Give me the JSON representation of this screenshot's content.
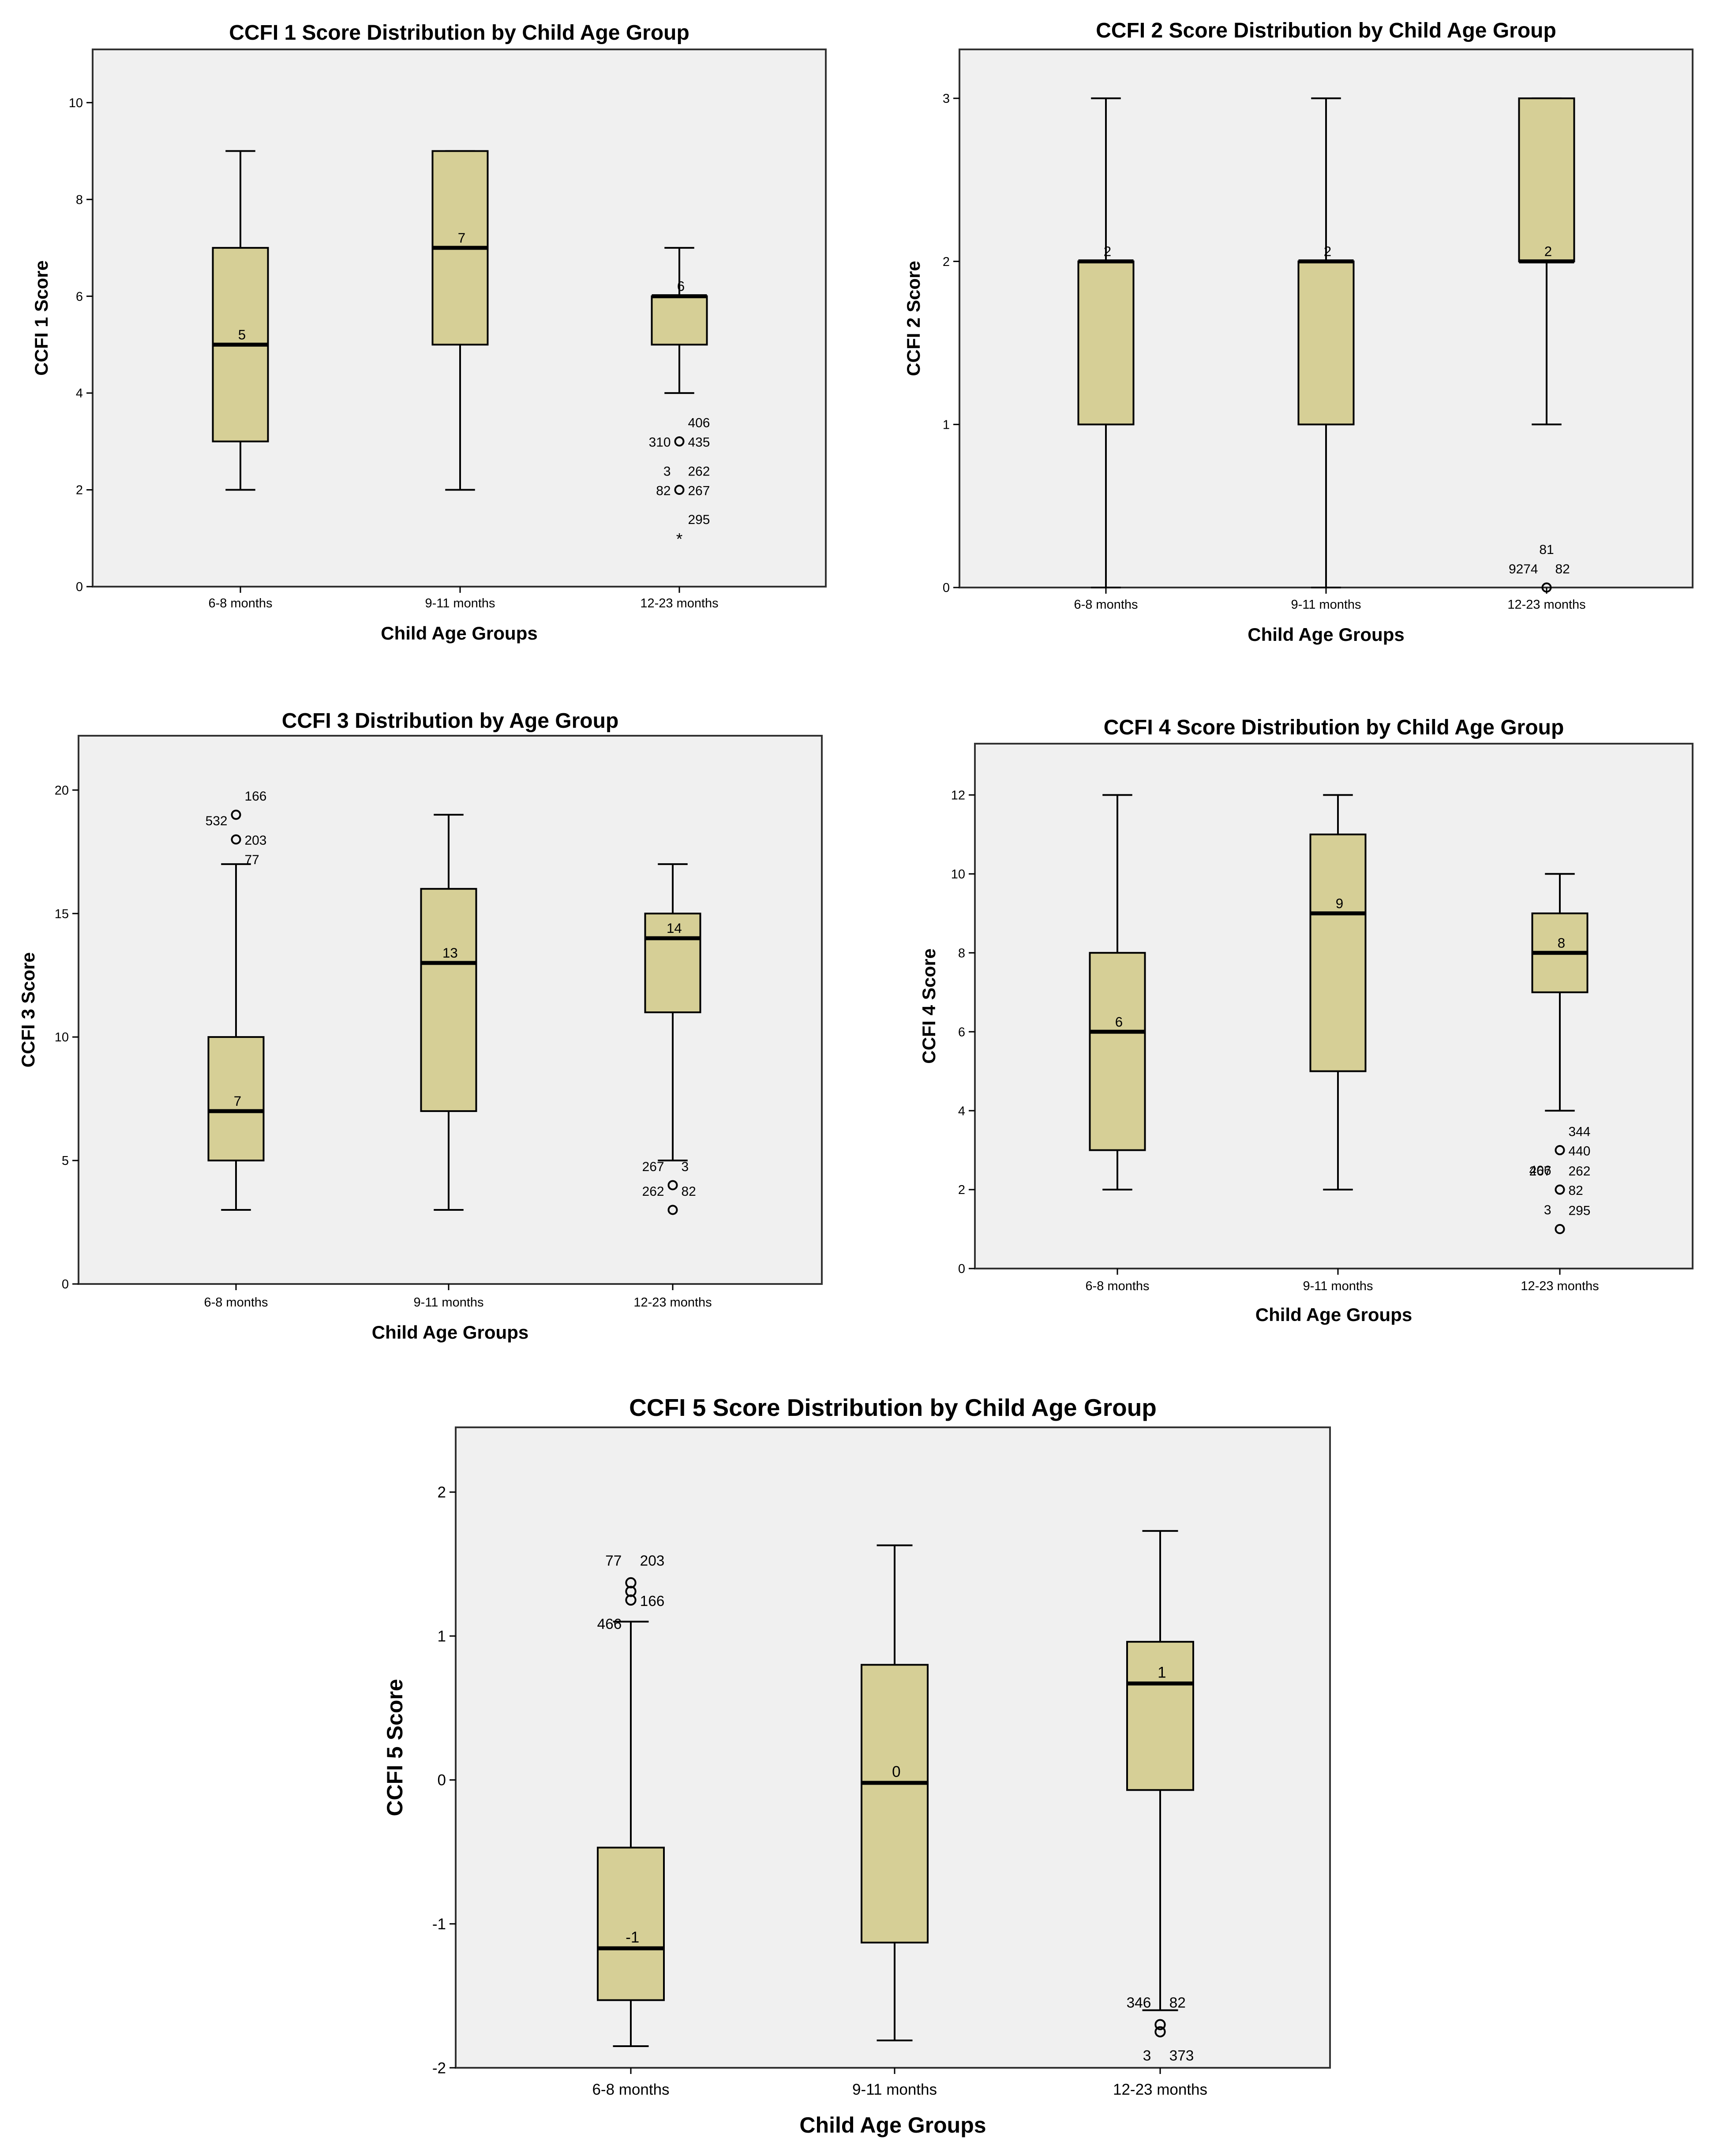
{
  "colors": {
    "box_fill": "#d6cf96",
    "plot_bg": "#f0f0f0",
    "frame": "#333333",
    "ink": "#000000"
  },
  "chart_data": [
    {
      "type": "boxplot",
      "title": "CCFI 1 Score Distribution by Child Age Group",
      "xlabel": "Child Age Groups",
      "ylabel": "CCFI 1 Score",
      "ylim": [
        0,
        11.1
      ],
      "yticks": [
        0,
        2,
        4,
        6,
        8,
        10
      ],
      "categories": [
        "6-8 months",
        "9-11 months",
        "12-23 months"
      ],
      "boxes": [
        {
          "category": "6-8 months",
          "whisker_low": 2,
          "q1": 3,
          "median": 5,
          "q3": 7,
          "whisker_high": 9,
          "median_label": "5",
          "outliers": []
        },
        {
          "category": "9-11 months",
          "whisker_low": 2,
          "q1": 5,
          "median": 7,
          "q3": 9,
          "whisker_high": 9,
          "median_label": "7",
          "outliers": []
        },
        {
          "category": "12-23 months",
          "whisker_low": 4,
          "q1": 5,
          "median": 6,
          "q3": 6,
          "whisker_high": 7,
          "median_label": "6",
          "outliers": [
            {
              "value": 3,
              "symbol": "circle",
              "labels": [
                {
                  "text": "406",
                  "side": "right",
                  "row": -1
                },
                {
                  "text": "310",
                  "side": "left",
                  "row": 0
                },
                {
                  "text": "435",
                  "side": "right",
                  "row": 0
                }
              ]
            },
            {
              "value": 2,
              "symbol": "circle",
              "labels": [
                {
                  "text": "3",
                  "side": "left",
                  "row": -1
                },
                {
                  "text": "262",
                  "side": "right",
                  "row": -1
                },
                {
                  "text": "82",
                  "side": "left",
                  "row": 0
                },
                {
                  "text": "267",
                  "side": "right",
                  "row": 0
                }
              ]
            },
            {
              "value": 1,
              "symbol": "star",
              "labels": [
                {
                  "text": "295",
                  "side": "right",
                  "row": -1
                }
              ]
            }
          ]
        }
      ]
    },
    {
      "type": "boxplot",
      "title": "CCFI 2 Score Distribution by Child Age Group",
      "xlabel": "Child Age Groups",
      "ylabel": "CCFI 2 Score",
      "ylim": [
        0,
        3.3
      ],
      "yticks": [
        0,
        1,
        2,
        3
      ],
      "categories": [
        "6-8 months",
        "9-11 months",
        "12-23 months"
      ],
      "boxes": [
        {
          "category": "6-8 months",
          "whisker_low": 0,
          "q1": 1,
          "median": 2,
          "q3": 2,
          "whisker_high": 3,
          "median_label": "2",
          "outliers": []
        },
        {
          "category": "9-11 months",
          "whisker_low": 0,
          "q1": 1,
          "median": 2,
          "q3": 2,
          "whisker_high": 3,
          "median_label": "2",
          "outliers": []
        },
        {
          "category": "12-23 months",
          "whisker_low": 1,
          "q1": 2,
          "median": 2,
          "q3": 3,
          "whisker_high": 3,
          "median_label": "2",
          "outliers": [
            {
              "value": 0,
              "symbol": "circle",
              "labels": [
                {
                  "text": "81",
                  "side": "center",
                  "row": -2
                },
                {
                  "text": "9274",
                  "side": "left",
                  "row": -1
                },
                {
                  "text": "82",
                  "side": "right",
                  "row": -1
                }
              ]
            }
          ]
        }
      ]
    },
    {
      "type": "boxplot",
      "title": "CCFI 3 Distribution by Age Group",
      "xlabel": "Child Age Groups",
      "ylabel": "CCFI 3 Score",
      "ylim": [
        0,
        22.2
      ],
      "yticks": [
        0,
        5,
        10,
        15,
        20
      ],
      "categories": [
        "6-8 months",
        "9-11 months",
        "12-23 months"
      ],
      "boxes": [
        {
          "category": "6-8 months",
          "whisker_low": 3,
          "q1": 5,
          "median": 7,
          "q3": 10,
          "whisker_high": 17,
          "median_label": "7",
          "outliers": [
            {
              "value": 19,
              "symbol": "circle",
              "labels": [
                {
                  "text": "166",
                  "side": "right",
                  "row": -1
                }
              ]
            },
            {
              "value": 18,
              "symbol": "circle",
              "labels": [
                {
                  "text": "532",
                  "side": "left",
                  "row": -1
                },
                {
                  "text": "203",
                  "side": "right",
                  "row": 0
                },
                {
                  "text": "77",
                  "side": "right",
                  "row": 1
                }
              ]
            }
          ]
        },
        {
          "category": "9-11 months",
          "whisker_low": 3,
          "q1": 7,
          "median": 13,
          "q3": 16,
          "whisker_high": 19,
          "median_label": "13",
          "outliers": []
        },
        {
          "category": "12-23 months",
          "whisker_low": 5,
          "q1": 11,
          "median": 14,
          "q3": 15,
          "whisker_high": 17,
          "median_label": "14",
          "outliers": [
            {
              "value": 4,
              "symbol": "circle",
              "labels": [
                {
                  "text": "267",
                  "side": "left",
                  "row": -1
                },
                {
                  "text": "3",
                  "side": "right",
                  "row": -1
                }
              ]
            },
            {
              "value": 3,
              "symbol": "circle",
              "labels": [
                {
                  "text": "262",
                  "side": "left",
                  "row": -1
                },
                {
                  "text": "82",
                  "side": "right",
                  "row": -1
                }
              ]
            }
          ]
        }
      ]
    },
    {
      "type": "boxplot",
      "title": "CCFI 4 Score Distribution by Child Age Group",
      "xlabel": "Child Age Groups",
      "ylabel": "CCFI 4 Score",
      "ylim": [
        0,
        13.3
      ],
      "yticks": [
        0,
        2,
        4,
        6,
        8,
        10,
        12
      ],
      "categories": [
        "6-8 months",
        "9-11 months",
        "12-23 months"
      ],
      "boxes": [
        {
          "category": "6-8 months",
          "whisker_low": 2,
          "q1": 3,
          "median": 6,
          "q3": 8,
          "whisker_high": 12,
          "median_label": "6",
          "outliers": []
        },
        {
          "category": "9-11 months",
          "whisker_low": 2,
          "q1": 5,
          "median": 9,
          "q3": 11,
          "whisker_high": 12,
          "median_label": "9",
          "outliers": []
        },
        {
          "category": "12-23 months",
          "whisker_low": 4,
          "q1": 7,
          "median": 8,
          "q3": 9,
          "whisker_high": 10,
          "median_label": "8",
          "outliers": [
            {
              "value": 3,
              "symbol": "circle",
              "labels": [
                {
                  "text": "344",
                  "side": "right",
                  "row": -1
                },
                {
                  "text": "440",
                  "side": "right",
                  "row": 0
                },
                {
                  "text": "406",
                  "side": "left",
                  "row": 1
                }
              ]
            },
            {
              "value": 2,
              "symbol": "circle",
              "labels": [
                {
                  "text": "262",
                  "side": "right",
                  "row": -1
                },
                {
                  "text": "267",
                  "side": "left",
                  "row": -1
                },
                {
                  "text": "82",
                  "side": "right",
                  "row": 0
                },
                {
                  "text": "3",
                  "side": "left",
                  "row": 1
                }
              ]
            },
            {
              "value": 1,
              "symbol": "circle",
              "labels": [
                {
                  "text": "295",
                  "side": "right",
                  "row": -1
                }
              ]
            }
          ]
        }
      ]
    },
    {
      "type": "boxplot",
      "title": "CCFI 5 Score Distribution by Child Age Group",
      "xlabel": "Child Age Groups",
      "ylabel": "CCFI 5 Score",
      "ylim": [
        -2,
        2.45
      ],
      "yticks": [
        -2,
        -1,
        0,
        1,
        2
      ],
      "categories": [
        "6-8 months",
        "9-11 months",
        "12-23 months"
      ],
      "boxes": [
        {
          "category": "6-8 months",
          "whisker_low": -1.85,
          "q1": -1.53,
          "median": -1.17,
          "q3": -0.47,
          "whisker_high": 1.1,
          "median_label": "-1",
          "outliers": [
            {
              "value": 1.37,
              "symbol": "circle",
              "labels": [
                {
                  "text": "77",
                  "side": "left",
                  "row": -1
                },
                {
                  "text": "203",
                  "side": "right",
                  "row": -1
                }
              ]
            },
            {
              "value": 1.31,
              "symbol": "circle",
              "labels": []
            },
            {
              "value": 1.25,
              "symbol": "circle",
              "labels": [
                {
                  "text": "166",
                  "side": "right",
                  "row": 0
                },
                {
                  "text": "466",
                  "side": "left",
                  "row": 1
                }
              ]
            }
          ]
        },
        {
          "category": "9-11 months",
          "whisker_low": -1.81,
          "q1": -1.13,
          "median": -0.02,
          "q3": 0.8,
          "whisker_high": 1.63,
          "median_label": "0",
          "outliers": []
        },
        {
          "category": "12-23 months",
          "whisker_low": -1.6,
          "q1": -0.07,
          "median": 0.67,
          "q3": 0.96,
          "whisker_high": 1.73,
          "median_label": "1",
          "outliers": [
            {
              "value": -1.7,
              "symbol": "circle",
              "labels": [
                {
                  "text": "346",
                  "side": "left",
                  "row": -1
                },
                {
                  "text": "82",
                  "side": "right",
                  "row": -1
                }
              ]
            },
            {
              "value": -1.75,
              "symbol": "circle",
              "labels": [
                {
                  "text": "3",
                  "side": "left",
                  "row": 1
                },
                {
                  "text": "373",
                  "side": "right",
                  "row": 1
                }
              ]
            }
          ]
        }
      ]
    }
  ]
}
